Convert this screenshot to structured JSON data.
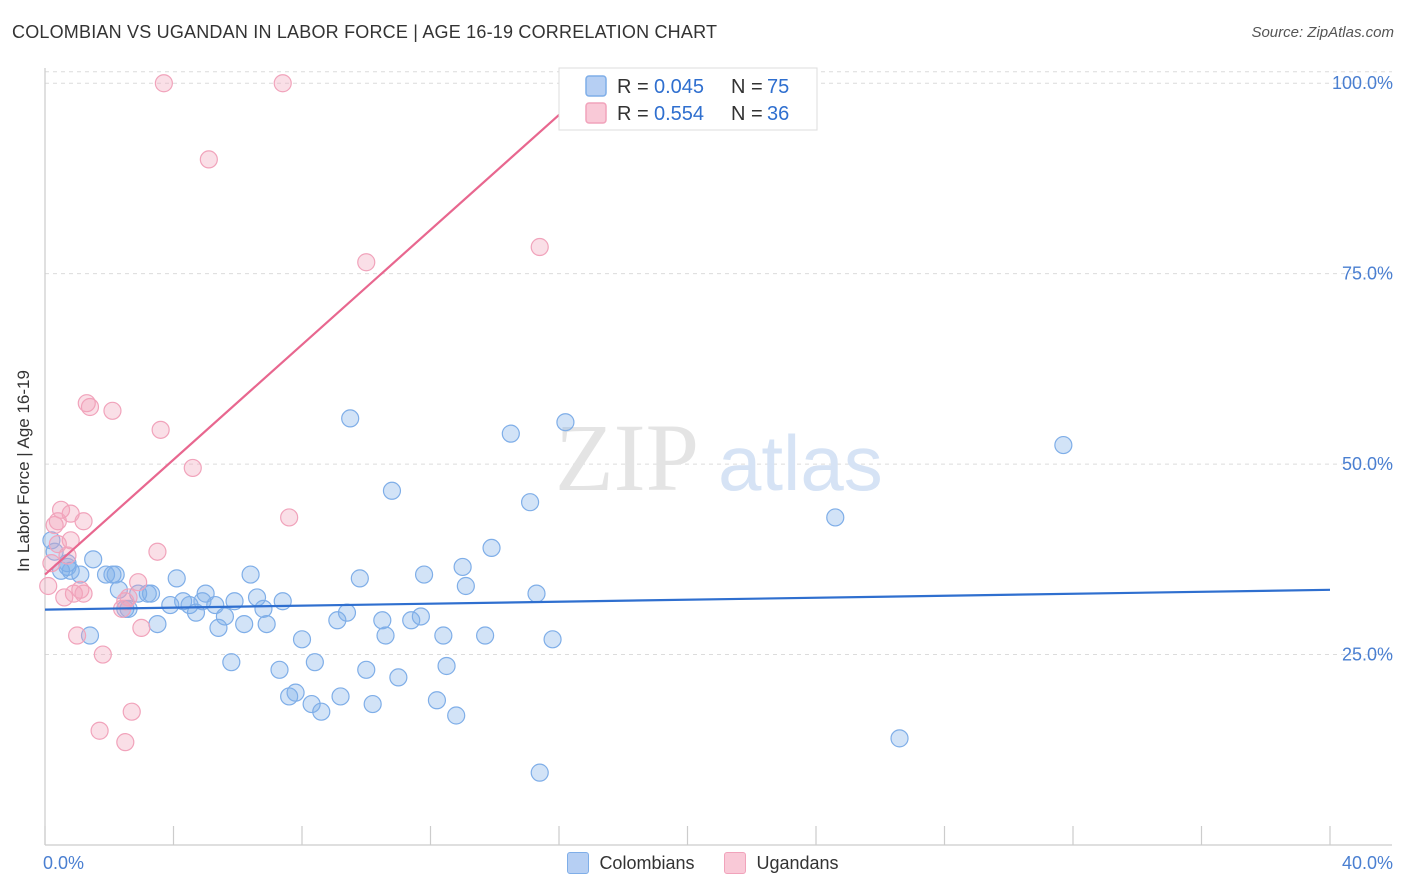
{
  "chart_data": {
    "type": "scatter",
    "title": "COLOMBIAN VS UGANDAN IN LABOR FORCE | AGE 16-19 CORRELATION CHART",
    "source": "Source: ZipAtlas.com",
    "ylabel": "In Labor Force | Age 16-19",
    "xlabel": "",
    "xlim": [
      0,
      40
    ],
    "ylim": [
      0,
      102
    ],
    "x_tick_labels": [
      "0.0%",
      "40.0%"
    ],
    "y_ticks": [
      {
        "value": 25,
        "label": "25.0%"
      },
      {
        "value": 50,
        "label": "50.0%"
      },
      {
        "value": 75,
        "label": "75.0%"
      },
      {
        "value": 100,
        "label": "100.0%"
      }
    ],
    "watermark": {
      "zip": "ZIP",
      "atlas": "atlas"
    },
    "legend": [
      {
        "r_label": "R =",
        "r_value": "0.045",
        "n_label": "N =",
        "n_value": "75"
      },
      {
        "r_label": "R =",
        "r_value": "0.554",
        "n_label": "N =",
        "n_value": "36"
      }
    ],
    "series": [
      {
        "name": "Colombians",
        "color": "#7faee8",
        "line_color": "#2f6fcf",
        "trend": {
          "x0": 0,
          "y0": 30.9,
          "x1": 40,
          "y1": 33.5
        },
        "points": [
          [
            0.3,
            38.5
          ],
          [
            0.5,
            36.0
          ],
          [
            0.7,
            37.0
          ],
          [
            0.7,
            36.5
          ],
          [
            1.1,
            35.5
          ],
          [
            1.4,
            27.5
          ],
          [
            1.5,
            37.5
          ],
          [
            1.9,
            35.5
          ],
          [
            2.1,
            35.5
          ],
          [
            2.2,
            35.5
          ],
          [
            2.3,
            33.5
          ],
          [
            2.5,
            31.0
          ],
          [
            2.6,
            31.0
          ],
          [
            2.9,
            33.0
          ],
          [
            3.2,
            33.0
          ],
          [
            3.3,
            33.0
          ],
          [
            3.5,
            29.0
          ],
          [
            3.9,
            31.5
          ],
          [
            4.1,
            35.0
          ],
          [
            4.3,
            32.0
          ],
          [
            4.5,
            31.5
          ],
          [
            4.7,
            30.5
          ],
          [
            4.9,
            32.0
          ],
          [
            5.0,
            33.0
          ],
          [
            5.3,
            31.5
          ],
          [
            5.4,
            28.5
          ],
          [
            5.6,
            30.0
          ],
          [
            5.8,
            24.0
          ],
          [
            5.9,
            32.0
          ],
          [
            6.2,
            29.0
          ],
          [
            6.4,
            35.5
          ],
          [
            6.6,
            32.5
          ],
          [
            6.8,
            31.0
          ],
          [
            6.9,
            29.0
          ],
          [
            7.3,
            23.0
          ],
          [
            7.4,
            32.0
          ],
          [
            7.6,
            19.5
          ],
          [
            7.8,
            20.0
          ],
          [
            8.0,
            27.0
          ],
          [
            8.3,
            18.5
          ],
          [
            8.4,
            24.0
          ],
          [
            8.6,
            17.5
          ],
          [
            9.1,
            29.5
          ],
          [
            9.2,
            19.5
          ],
          [
            9.4,
            30.5
          ],
          [
            9.5,
            56.0
          ],
          [
            9.8,
            35.0
          ],
          [
            10.0,
            23.0
          ],
          [
            10.2,
            18.5
          ],
          [
            10.5,
            29.5
          ],
          [
            10.6,
            27.5
          ],
          [
            10.8,
            46.5
          ],
          [
            11.0,
            22.0
          ],
          [
            11.4,
            29.5
          ],
          [
            11.7,
            30.0
          ],
          [
            11.8,
            35.5
          ],
          [
            12.2,
            19.0
          ],
          [
            12.4,
            27.5
          ],
          [
            12.5,
            23.5
          ],
          [
            12.8,
            17.0
          ],
          [
            13.0,
            36.5
          ],
          [
            13.1,
            34.0
          ],
          [
            13.7,
            27.5
          ],
          [
            13.9,
            39.0
          ],
          [
            14.5,
            54.0
          ],
          [
            15.1,
            45.0
          ],
          [
            15.3,
            33.0
          ],
          [
            15.4,
            9.5
          ],
          [
            15.8,
            27.0
          ],
          [
            16.2,
            55.5
          ],
          [
            24.6,
            43.0
          ],
          [
            26.6,
            14.0
          ],
          [
            31.7,
            52.5
          ],
          [
            0.2,
            40.0
          ],
          [
            0.8,
            36.0
          ]
        ]
      },
      {
        "name": "Ugandans",
        "color": "#f1a3bb",
        "line_color": "#e8678f",
        "trend": {
          "x0": 0,
          "y0": 35.5,
          "x1": 17.5,
          "y1": 101.5
        },
        "points": [
          [
            0.1,
            34.0
          ],
          [
            0.3,
            42.0
          ],
          [
            0.4,
            39.5
          ],
          [
            0.5,
            44.0
          ],
          [
            0.6,
            32.5
          ],
          [
            0.7,
            38.0
          ],
          [
            0.8,
            43.5
          ],
          [
            0.8,
            40.0
          ],
          [
            0.9,
            33.0
          ],
          [
            1.0,
            27.5
          ],
          [
            1.1,
            33.5
          ],
          [
            1.2,
            42.5
          ],
          [
            1.3,
            58.0
          ],
          [
            1.4,
            57.5
          ],
          [
            1.7,
            15.0
          ],
          [
            1.8,
            25.0
          ],
          [
            2.1,
            57.0
          ],
          [
            2.4,
            31.0
          ],
          [
            2.5,
            13.5
          ],
          [
            2.6,
            32.5
          ],
          [
            2.7,
            17.5
          ],
          [
            2.9,
            34.5
          ],
          [
            3.0,
            28.5
          ],
          [
            3.5,
            38.5
          ],
          [
            3.6,
            54.5
          ],
          [
            3.7,
            100.0
          ],
          [
            4.6,
            49.5
          ],
          [
            5.1,
            90.0
          ],
          [
            7.4,
            100.0
          ],
          [
            7.6,
            43.0
          ],
          [
            10.0,
            76.5
          ],
          [
            15.4,
            78.5
          ],
          [
            1.2,
            33.0
          ],
          [
            0.2,
            37.0
          ],
          [
            0.4,
            42.5
          ],
          [
            2.5,
            32.0
          ]
        ]
      }
    ]
  }
}
